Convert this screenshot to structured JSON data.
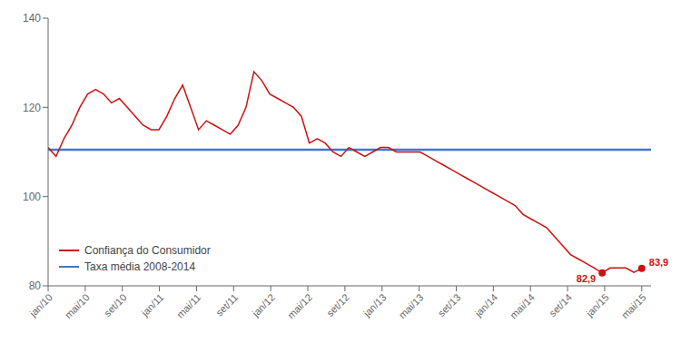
{
  "chart_data": {
    "type": "line",
    "x": [
      0,
      0.853333,
      1.706667,
      2.56,
      3.413333,
      4.266667,
      5.12,
      5.973333,
      6.826667,
      7.68,
      8.533333,
      9.386667,
      10.24,
      11.093333,
      11.946667,
      12.8,
      13.653333,
      14.506667,
      15.36,
      16.213333,
      17.066667,
      17.92,
      18.773333,
      19.626667,
      20.48,
      21.333333,
      22.186667,
      23.04,
      23.893333,
      24.746667,
      25.6,
      26.453333,
      27.306667,
      28.16,
      29.013333,
      29.866667,
      30.72,
      31.573333,
      32.426667,
      33.28,
      34.133333,
      34.986667,
      35.84,
      36.693333,
      37.546667,
      38.4,
      39.253333,
      40.106667,
      40.96,
      41.813333,
      42.666667,
      43.52,
      44.373333,
      45.226667,
      46.08,
      46.933333,
      47.786667,
      48.64,
      49.493333,
      50.346667,
      51.2,
      52.053333,
      52.906667,
      53.76,
      54.613333,
      55.466667,
      56.32,
      57.173333,
      58.026667,
      58.88,
      59.733333,
      60.586667,
      61.44,
      62.293333,
      63.146667,
      64
    ],
    "xlim": [
      0,
      65
    ],
    "xticks": [
      {
        "value": 0,
        "label": "jan/10"
      },
      {
        "value": 4,
        "label": "mai/10"
      },
      {
        "value": 8,
        "label": "set/10"
      },
      {
        "value": 12,
        "label": "jan/11"
      },
      {
        "value": 16,
        "label": "mai/11"
      },
      {
        "value": 20,
        "label": "set/11"
      },
      {
        "value": 24,
        "label": "jan/12"
      },
      {
        "value": 28,
        "label": "mai/12"
      },
      {
        "value": 32,
        "label": "set/12"
      },
      {
        "value": 36,
        "label": "jan/13"
      },
      {
        "value": 40,
        "label": "mai/13"
      },
      {
        "value": 44,
        "label": "set/13"
      },
      {
        "value": 48,
        "label": "jan/14"
      },
      {
        "value": 52,
        "label": "mai/14"
      },
      {
        "value": 56,
        "label": "set/14"
      },
      {
        "value": 60,
        "label": "jan/15"
      },
      {
        "value": 64,
        "label": "mai/15"
      }
    ],
    "ylim": [
      80,
      140
    ],
    "yticks": [
      80,
      100,
      120,
      140
    ],
    "grid": false,
    "legend": "lower left",
    "series": [
      {
        "name": "Confiança do Consumidor",
        "color": "#cc1111",
        "values": [
          111,
          109,
          113,
          116,
          120,
          123,
          124,
          123,
          121,
          122,
          120,
          118,
          116,
          115,
          115,
          118,
          122,
          125,
          120,
          115,
          117,
          116,
          115,
          114,
          116,
          120,
          128,
          126,
          123,
          122,
          121,
          120,
          118,
          112,
          113,
          112,
          110,
          109,
          111,
          110,
          109,
          110,
          111,
          111,
          110,
          110,
          110,
          110,
          109,
          108,
          107,
          106,
          105,
          104,
          103,
          102,
          101,
          100,
          99,
          98,
          96,
          95,
          94,
          93,
          91,
          89,
          87,
          86,
          85,
          84,
          82.9,
          84,
          84,
          84,
          83,
          83.9
        ]
      },
      {
        "name": "Taxa média 2008-2014",
        "color": "#4477cc",
        "type": "hline",
        "y": 110.5
      }
    ],
    "annotations": [
      {
        "x": 59.733333,
        "y": 82.9,
        "text": "82,9"
      },
      {
        "x": 64,
        "y": 83.9,
        "text": "83,9"
      }
    ]
  }
}
